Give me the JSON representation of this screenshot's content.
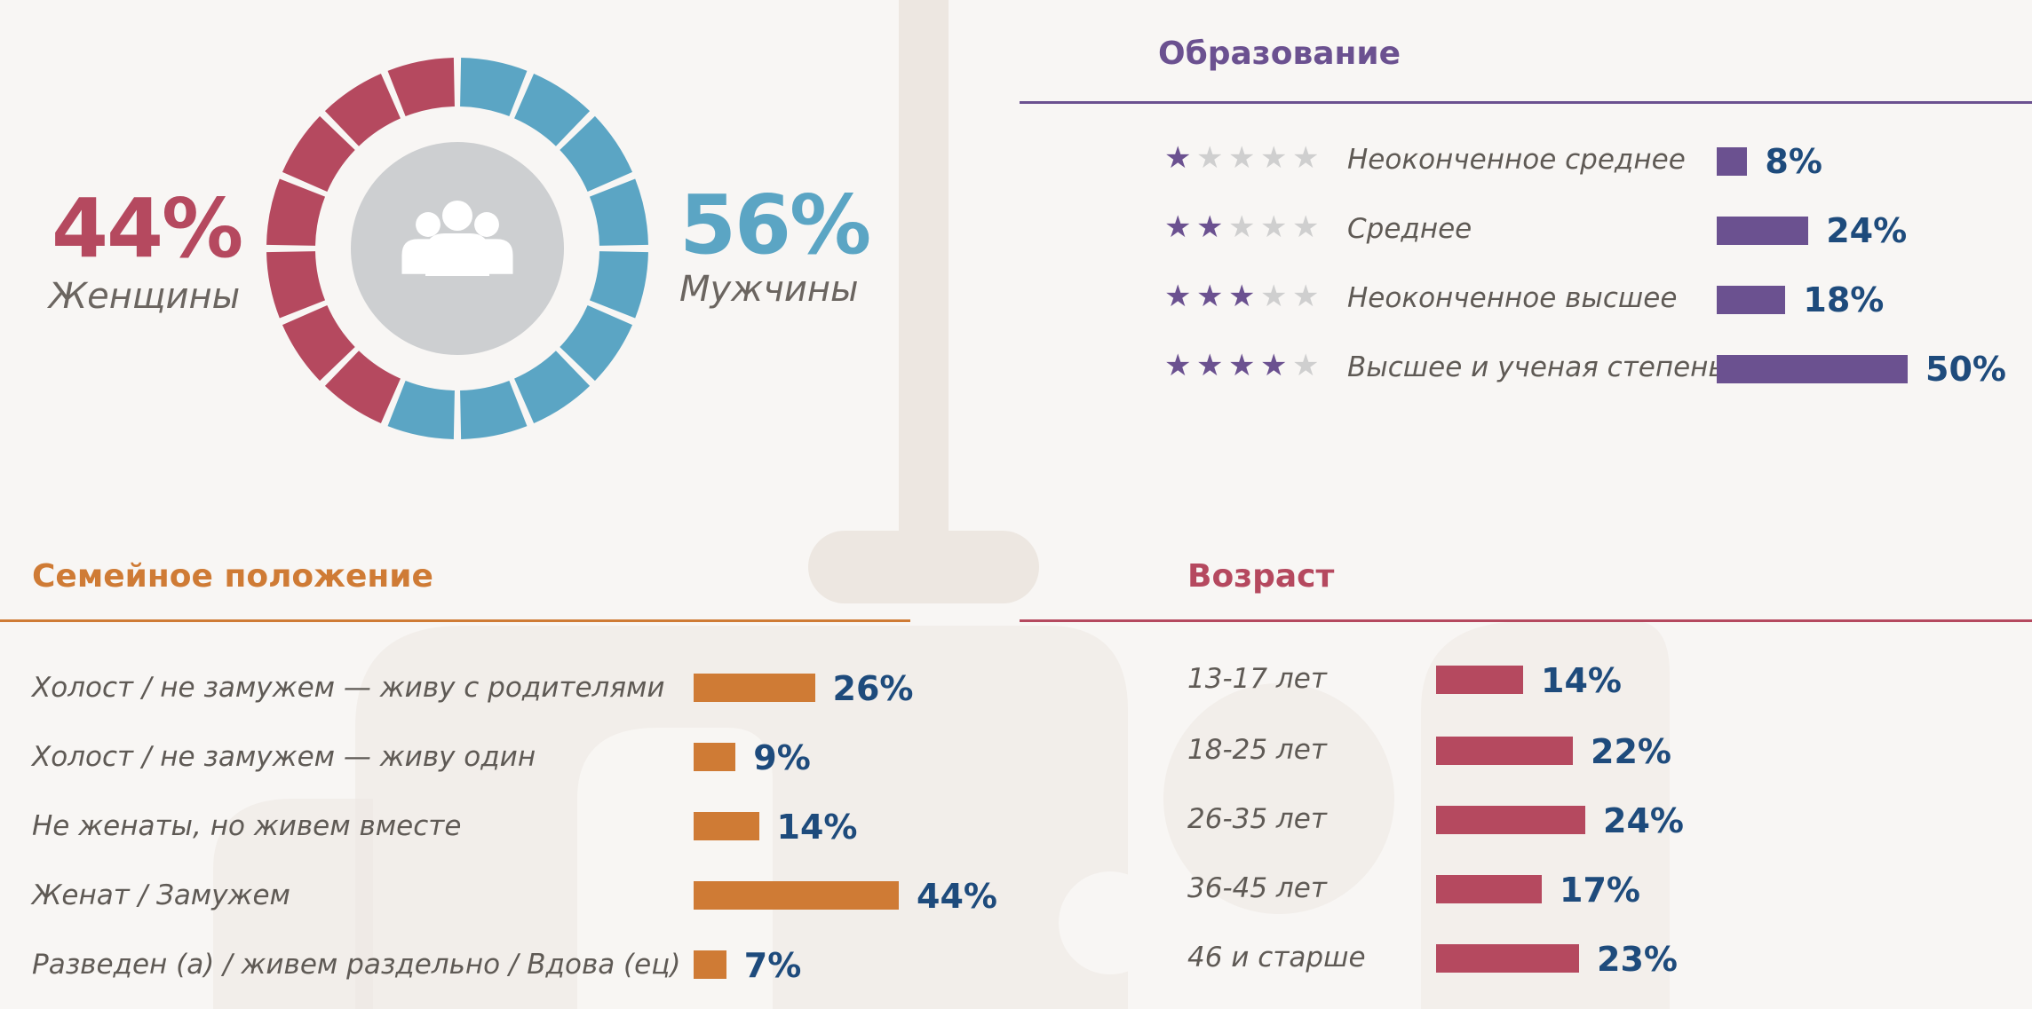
{
  "colors": {
    "female": "#b5495f",
    "male": "#5ba5c4",
    "education": "#6b5190",
    "family": "#cf7b35",
    "age": "#b5495f",
    "value_text": "#1e4b7c",
    "star_inactive": "#cfcfcf",
    "background_decoration": "#ede7e1",
    "donut_center": "#cdcfd1"
  },
  "gender": {
    "female": {
      "percent": "44%",
      "label": "Женщины"
    },
    "male": {
      "percent": "56%",
      "label": "Мужчины"
    },
    "icon": "people-group-icon"
  },
  "chart_data": [
    {
      "type": "pie",
      "title": "",
      "categories": [
        "Женщины",
        "Мужчины"
      ],
      "values": [
        44,
        56
      ],
      "labels": [
        "44%",
        "56%"
      ],
      "series": [
        {
          "values": [
            44,
            56
          ]
        }
      ]
    },
    {
      "type": "bar",
      "title": "Образование",
      "categories": [
        "Неоконченное среднее",
        "Среднее",
        "Неоконченное высшее",
        "Высшее и ученая степень"
      ],
      "values": [
        8,
        24,
        18,
        50
      ],
      "labels": [
        "8%",
        "24%",
        "18%",
        "50%"
      ],
      "stars": [
        1,
        2,
        3,
        4
      ],
      "stars_max": 5
    },
    {
      "type": "bar",
      "title": "Семейное положение",
      "categories": [
        "Холост / не замужем — живу с родителями",
        "Холост / не замужем — живу один",
        "Не женаты, но живем вместе",
        "Женат / Замужем",
        "Разведен (а) / живем раздельно / Вдова (ец)"
      ],
      "values": [
        26,
        9,
        14,
        44,
        7
      ],
      "labels": [
        "26%",
        "9%",
        "14%",
        "44%",
        "7%"
      ]
    },
    {
      "type": "bar",
      "title": "Возраст",
      "categories": [
        "13-17 лет",
        "18-25 лет",
        "26-35 лет",
        "36-45 лет",
        "46 и старше"
      ],
      "values": [
        14,
        22,
        24,
        17,
        23
      ],
      "labels": [
        "14%",
        "22%",
        "24%",
        "17%",
        "23%"
      ]
    }
  ]
}
